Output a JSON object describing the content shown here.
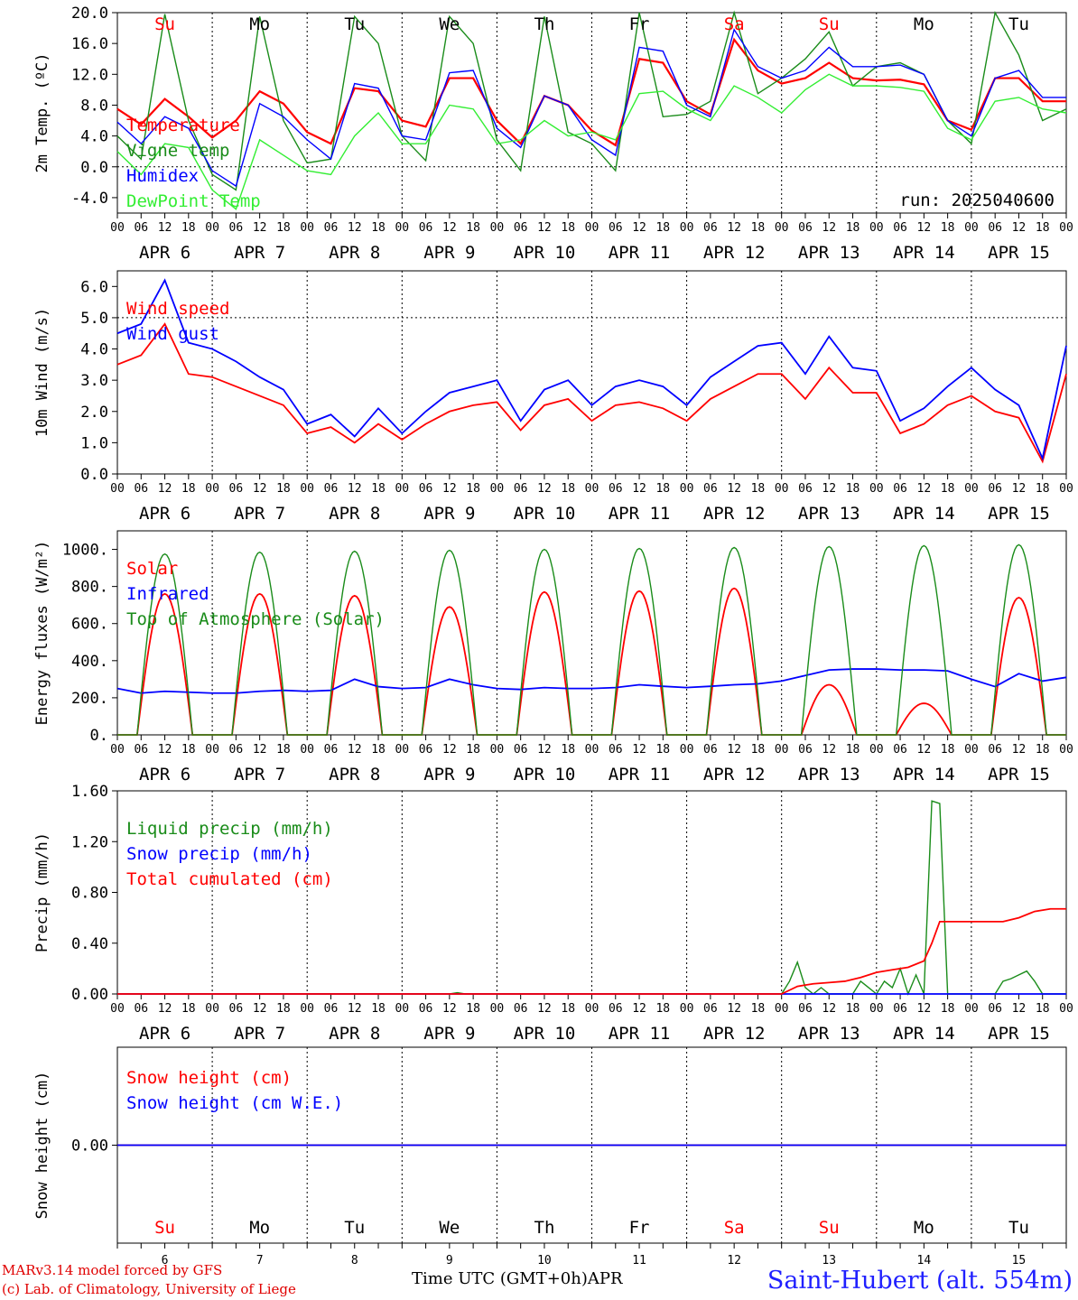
{
  "run_label": "run: 2025040600",
  "footer": {
    "credit_line1": "MARv3.14 model forced by GFS",
    "credit_line2": "(c) Lab. of Climatology, University of Liege",
    "xaxis_label": "Time UTC (GMT+0h)",
    "month": "APR",
    "station": "Saint-Hubert (alt. 554m)"
  },
  "colors": {
    "red": "#ff0000",
    "green": "#1a8c1a",
    "blue": "#0000ff",
    "lightgreen": "#33ee33",
    "weekend": "#ff0000"
  },
  "days": [
    {
      "weekday": "Su",
      "date": "APR  6",
      "num": "6",
      "weekend": true
    },
    {
      "weekday": "Mo",
      "date": "APR  7",
      "num": "7",
      "weekend": false
    },
    {
      "weekday": "Tu",
      "date": "APR  8",
      "num": "8",
      "weekend": false
    },
    {
      "weekday": "We",
      "date": "APR  9",
      "num": "9",
      "weekend": false
    },
    {
      "weekday": "Th",
      "date": "APR 10",
      "num": "10",
      "weekend": false
    },
    {
      "weekday": "Fr",
      "date": "APR 11",
      "num": "11",
      "weekend": false
    },
    {
      "weekday": "Sa",
      "date": "APR 12",
      "num": "12",
      "weekend": true
    },
    {
      "weekday": "Su",
      "date": "APR 13",
      "num": "13",
      "weekend": true
    },
    {
      "weekday": "Mo",
      "date": "APR 14",
      "num": "14",
      "weekend": false
    },
    {
      "weekday": "Tu",
      "date": "APR 15",
      "num": "15",
      "weekend": false
    }
  ],
  "hour_ticks": [
    "00",
    "06",
    "12",
    "18"
  ],
  "chart_data": [
    {
      "type": "line",
      "ylabel": "2m Temp. (ºC)",
      "ylim": [
        -6,
        20
      ],
      "yticks": [
        "20.0",
        "16.0",
        "12.0",
        "8.0",
        "4.0",
        "0.0",
        "-4.0"
      ],
      "ytick_values": [
        20,
        16,
        12,
        8,
        4,
        0,
        -4
      ],
      "ref_line": 0,
      "x_unit": "hours since APR 6 00 UTC",
      "series": [
        {
          "name": "Temperature",
          "color": "red",
          "x": [
            0,
            6,
            12,
            18,
            24,
            30,
            36,
            42,
            48,
            54,
            60,
            66,
            72,
            78,
            84,
            90,
            96,
            102,
            108,
            114,
            120,
            126,
            132,
            138,
            144,
            150,
            156,
            162,
            168,
            174,
            180,
            186,
            192,
            198,
            204,
            210,
            216,
            222,
            228,
            234,
            240
          ],
          "y": [
            7.5,
            5.5,
            8.8,
            6.5,
            3.8,
            6.0,
            9.8,
            8.2,
            4.5,
            3.0,
            10.2,
            9.8,
            6.0,
            5.2,
            11.5,
            11.5,
            6.0,
            3.0,
            9.2,
            8.0,
            4.7,
            2.8,
            14.0,
            13.5,
            8.5,
            6.8,
            16.5,
            12.5,
            10.8,
            11.5,
            13.5,
            11.5,
            11.2,
            11.3,
            10.7,
            6.0,
            4.8,
            11.5,
            11.5,
            8.5,
            8.5
          ]
        },
        {
          "name": "Vigne temp",
          "color": "green",
          "x": [
            0,
            6,
            12,
            18,
            24,
            30,
            36,
            42,
            48,
            54,
            60,
            66,
            72,
            78,
            84,
            90,
            96,
            102,
            108,
            114,
            120,
            126,
            132,
            138,
            144,
            150,
            156,
            162,
            168,
            174,
            180,
            186,
            192,
            198,
            204,
            210,
            216,
            222,
            228,
            234,
            240
          ],
          "y": [
            4.0,
            1.0,
            19.8,
            6.0,
            -1.0,
            -3.0,
            19.5,
            6.0,
            0.5,
            1.0,
            19.5,
            16.0,
            4.0,
            0.8,
            19.5,
            16.0,
            3.5,
            -0.5,
            19.5,
            4.5,
            3.0,
            -0.5,
            20.0,
            6.5,
            6.8,
            8.5,
            20.0,
            9.5,
            11.5,
            14.0,
            17.5,
            10.5,
            13.0,
            13.5,
            12.0,
            6.0,
            3.0,
            20.0,
            14.5,
            6.0,
            7.5
          ]
        },
        {
          "name": "Humidex",
          "color": "blue",
          "x": [
            0,
            6,
            12,
            18,
            24,
            30,
            36,
            42,
            48,
            54,
            60,
            66,
            72,
            78,
            84,
            90,
            96,
            102,
            108,
            114,
            120,
            126,
            132,
            138,
            144,
            150,
            156,
            162,
            168,
            174,
            180,
            186,
            192,
            198,
            204,
            210,
            216,
            222,
            228,
            234,
            240
          ],
          "y": [
            5.8,
            3.0,
            6.5,
            5.0,
            -0.5,
            -2.5,
            8.2,
            6.5,
            3.5,
            1.0,
            10.8,
            10.2,
            4.0,
            3.5,
            12.2,
            12.5,
            5.0,
            2.5,
            9.2,
            8.0,
            3.5,
            1.5,
            15.5,
            15.0,
            8.0,
            6.5,
            17.8,
            13.0,
            11.5,
            12.5,
            15.5,
            13.0,
            13.0,
            13.2,
            12.0,
            6.0,
            4.0,
            11.5,
            12.5,
            9.0,
            9.0
          ]
        },
        {
          "name": "DewPoint Temp",
          "color": "lightgreen",
          "x": [
            0,
            6,
            12,
            18,
            24,
            30,
            36,
            42,
            48,
            54,
            60,
            66,
            72,
            78,
            84,
            90,
            96,
            102,
            108,
            114,
            120,
            126,
            132,
            138,
            144,
            150,
            156,
            162,
            168,
            174,
            180,
            186,
            192,
            198,
            204,
            210,
            216,
            222,
            228,
            234,
            240
          ],
          "y": [
            2.0,
            -1.0,
            3.0,
            2.5,
            -3.0,
            -5.5,
            3.5,
            1.5,
            -0.5,
            -1.0,
            4.0,
            7.0,
            3.0,
            3.0,
            8.0,
            7.5,
            3.0,
            3.5,
            6.0,
            4.0,
            4.5,
            3.5,
            9.5,
            9.8,
            7.5,
            6.0,
            10.5,
            9.0,
            7.0,
            10.0,
            12.0,
            10.5,
            10.5,
            10.3,
            9.8,
            5.0,
            3.5,
            8.5,
            9.0,
            7.5,
            7.0
          ]
        }
      ]
    },
    {
      "type": "line",
      "ylabel": "10m Wind (m/s)",
      "ylim": [
        0,
        6.5
      ],
      "yticks": [
        "6.0",
        "5.0",
        "4.0",
        "3.0",
        "2.0",
        "1.0",
        "0.0"
      ],
      "ytick_values": [
        6,
        5,
        4,
        3,
        2,
        1,
        0
      ],
      "ref_line": 5,
      "series": [
        {
          "name": "Wind speed",
          "color": "red",
          "x": [
            0,
            6,
            12,
            18,
            24,
            30,
            36,
            42,
            48,
            54,
            60,
            66,
            72,
            78,
            84,
            90,
            96,
            102,
            108,
            114,
            120,
            126,
            132,
            138,
            144,
            150,
            156,
            162,
            168,
            174,
            180,
            186,
            192,
            198,
            204,
            210,
            216,
            222,
            228,
            234,
            240
          ],
          "y": [
            3.5,
            3.8,
            4.8,
            3.2,
            3.1,
            2.8,
            2.5,
            2.2,
            1.3,
            1.5,
            1.0,
            1.6,
            1.1,
            1.6,
            2.0,
            2.2,
            2.3,
            1.4,
            2.2,
            2.4,
            1.7,
            2.2,
            2.3,
            2.1,
            1.7,
            2.4,
            2.8,
            3.2,
            3.2,
            2.4,
            3.4,
            2.6,
            2.6,
            1.3,
            1.6,
            2.2,
            2.5,
            2.0,
            1.8,
            0.4,
            3.2
          ]
        },
        {
          "name": "Wind gust",
          "color": "blue",
          "x": [
            0,
            6,
            12,
            18,
            24,
            30,
            36,
            42,
            48,
            54,
            60,
            66,
            72,
            78,
            84,
            90,
            96,
            102,
            108,
            114,
            120,
            126,
            132,
            138,
            144,
            150,
            156,
            162,
            168,
            174,
            180,
            186,
            192,
            198,
            204,
            210,
            216,
            222,
            228,
            234,
            240
          ],
          "y": [
            4.5,
            4.8,
            6.2,
            4.2,
            4.0,
            3.6,
            3.1,
            2.7,
            1.6,
            1.9,
            1.2,
            2.1,
            1.3,
            2.0,
            2.6,
            2.8,
            3.0,
            1.7,
            2.7,
            3.0,
            2.2,
            2.8,
            3.0,
            2.8,
            2.2,
            3.1,
            3.6,
            4.1,
            4.2,
            3.2,
            4.4,
            3.4,
            3.3,
            1.7,
            2.1,
            2.8,
            3.4,
            2.7,
            2.2,
            0.5,
            4.1
          ]
        }
      ]
    },
    {
      "type": "line",
      "ylabel": "Energy fluxes (W/m²)",
      "ylim": [
        0,
        1100
      ],
      "yticks": [
        "1000.",
        "800.",
        "600.",
        "400.",
        "200.",
        "0."
      ],
      "ytick_values": [
        1000,
        800,
        600,
        400,
        200,
        0
      ],
      "series": [
        {
          "name": "Solar",
          "color": "red",
          "daily_peaks": [
            760,
            760,
            750,
            690,
            770,
            775,
            790,
            270,
            170,
            740
          ]
        },
        {
          "name": "Infrared",
          "color": "blue",
          "x": [
            0,
            6,
            12,
            18,
            24,
            30,
            36,
            42,
            48,
            54,
            60,
            66,
            72,
            78,
            84,
            90,
            96,
            102,
            108,
            114,
            120,
            126,
            132,
            138,
            144,
            150,
            156,
            162,
            168,
            174,
            180,
            186,
            192,
            198,
            204,
            210,
            216,
            222,
            228,
            234,
            240
          ],
          "y": [
            250,
            225,
            235,
            230,
            225,
            225,
            235,
            240,
            235,
            240,
            300,
            260,
            250,
            255,
            300,
            270,
            250,
            245,
            255,
            250,
            250,
            255,
            270,
            262,
            255,
            262,
            270,
            275,
            290,
            320,
            350,
            355,
            355,
            350,
            350,
            345,
            300,
            260,
            330,
            290,
            310
          ]
        },
        {
          "name": "Top of Atmosphere (Solar)",
          "color": "green",
          "daily_peaks": [
            975,
            985,
            990,
            995,
            1000,
            1005,
            1010,
            1015,
            1020,
            1025
          ]
        }
      ]
    },
    {
      "type": "line",
      "ylabel": "Precip (mm/h)",
      "ylim": [
        0,
        1.6
      ],
      "yticks": [
        "1.60",
        "1.20",
        "0.80",
        "0.40",
        "0.00"
      ],
      "ytick_values": [
        1.6,
        1.2,
        0.8,
        0.4,
        0
      ],
      "series": [
        {
          "name": "Liquid precip (mm/h)",
          "color": "green",
          "x": [
            0,
            84,
            86,
            88,
            168,
            170,
            172,
            174,
            176,
            178,
            180,
            184,
            186,
            188,
            190,
            192,
            194,
            196,
            198,
            200,
            202,
            204,
            206,
            208,
            210,
            212,
            214,
            216,
            220,
            222,
            224,
            226,
            228,
            230,
            232,
            234,
            236,
            240
          ],
          "y": [
            0,
            0,
            0.01,
            0,
            0,
            0.1,
            0.25,
            0.05,
            0,
            0.05,
            0,
            0,
            0,
            0.1,
            0.05,
            0,
            0.1,
            0.05,
            0.2,
            0,
            0.15,
            0,
            1.52,
            1.5,
            0,
            0,
            0,
            0,
            0,
            0,
            0.1,
            0.12,
            0.15,
            0.18,
            0.1,
            0,
            0,
            0
          ]
        },
        {
          "name": "Snow precip (mm/h)",
          "color": "blue",
          "x": [
            0,
            240
          ],
          "y": [
            0,
            0
          ]
        },
        {
          "name": "Total cumulated (cm)",
          "color": "red",
          "x": [
            0,
            168,
            172,
            176,
            180,
            184,
            188,
            192,
            196,
            200,
            204,
            206,
            208,
            224,
            228,
            232,
            236,
            240
          ],
          "y": [
            0,
            0,
            0.06,
            0.08,
            0.09,
            0.1,
            0.13,
            0.17,
            0.19,
            0.21,
            0.26,
            0.4,
            0.57,
            0.57,
            0.6,
            0.65,
            0.67,
            0.67
          ]
        }
      ]
    },
    {
      "type": "line",
      "ylabel": "Snow height (cm)",
      "ylim": [
        -1,
        1
      ],
      "yticks": [
        "0.00"
      ],
      "ytick_values": [
        0
      ],
      "series": [
        {
          "name": "Snow height (cm)",
          "color": "red",
          "x": [
            0,
            240
          ],
          "y": [
            0,
            0
          ]
        },
        {
          "name": "Snow height (cm W.E.)",
          "color": "blue",
          "x": [
            0,
            240
          ],
          "y": [
            0,
            0
          ]
        }
      ]
    }
  ]
}
